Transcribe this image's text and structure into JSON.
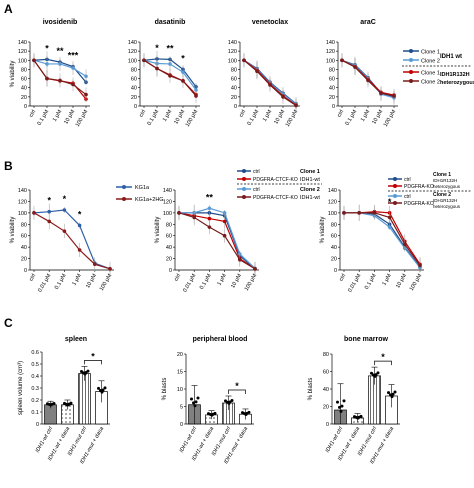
{
  "colors": {
    "clone1_wt": "#1f4e8c",
    "clone2_wt": "#5b9bd5",
    "clone1_mut": "#c00000",
    "clone2_mut": "#7b1c1c",
    "kg1a": "#2e5fa8",
    "kg1a_2hg": "#8b1a1a",
    "bar_dark": "#808080",
    "bar_light": "#ffffff"
  },
  "panels": {
    "A": "A",
    "B": "B",
    "C": "C"
  },
  "legend_A": {
    "clone1": "Clone 1",
    "clone2": "Clone 2",
    "group_wt": "IDH1 wt",
    "group_mut_line1": "IDH1R132H",
    "group_mut_line2": "heterozygous"
  },
  "legend_B": {
    "kg1a": "KG1a",
    "kg1a_2hg": "KG1a+2HG",
    "ctrl": "ctrl",
    "ko": "PDGFRA-CTCF-KO",
    "ko_short": "PDGFRA-KO",
    "clone1_title": "Clone 1",
    "clone1_sub": "IDH1-wt",
    "clone2_title": "Clone 2",
    "clone2_sub": "IDH1-wt",
    "clone1_mut_title": "Clone 1",
    "clone1_mut_sub": "IDH1R132H",
    "clone1_mut_sub2": "heterozygous",
    "clone2_mut_title": "Clone 2",
    "clone2_mut_sub": "IDH1R132H",
    "clone2_mut_sub2": "heterozygous"
  },
  "chart_data": [
    {
      "panel": "A",
      "type": "line",
      "title": "ivosidenib",
      "ylabel": "% viability",
      "categories": [
        "ctrl",
        "0.1 μM",
        "1 μM",
        "10 μM",
        "100 μM"
      ],
      "ylim": [
        0,
        140
      ],
      "yticks": [
        0,
        20,
        40,
        60,
        80,
        100,
        120,
        140
      ],
      "annotations": [
        {
          "x": 1,
          "text": "*"
        },
        {
          "x": 2,
          "text": "**"
        },
        {
          "x": 3,
          "text": "***"
        }
      ],
      "series": [
        {
          "name": "Clone 1 IDH1 wt",
          "color": "#1f4e8c",
          "values": [
            100,
            102,
            96,
            86,
            52
          ]
        },
        {
          "name": "Clone 2 IDH1 wt",
          "color": "#5b9bd5",
          "values": [
            100,
            92,
            92,
            83,
            65
          ]
        },
        {
          "name": "Clone 1 IDH1R132H",
          "color": "#c00000",
          "values": [
            100,
            60,
            55,
            50,
            15
          ]
        },
        {
          "name": "Clone 2 IDH1R132H",
          "color": "#7b1c1c",
          "values": [
            100,
            60,
            56,
            47,
            25
          ]
        }
      ]
    },
    {
      "panel": "A",
      "type": "line",
      "title": "dasatinib",
      "categories": [
        "ctrl",
        "0.1 μM",
        "1 μM",
        "10 μM",
        "100 μM"
      ],
      "ylim": [
        0,
        140
      ],
      "yticks": [
        0,
        20,
        40,
        60,
        80,
        100,
        120,
        140
      ],
      "annotations": [
        {
          "x": 1,
          "text": "*"
        },
        {
          "x": 2,
          "text": "**"
        },
        {
          "x": 3,
          "text": "*"
        }
      ],
      "series": [
        {
          "name": "Clone 1 IDH1 wt",
          "color": "#1f4e8c",
          "values": [
            100,
            103,
            102,
            80,
            42
          ]
        },
        {
          "name": "Clone 2 IDH1 wt",
          "color": "#5b9bd5",
          "values": [
            100,
            93,
            92,
            74,
            35
          ]
        },
        {
          "name": "Clone 1 IDH1R132H",
          "color": "#c00000",
          "values": [
            100,
            82,
            68,
            55,
            25
          ]
        },
        {
          "name": "Clone 2 IDH1R132H",
          "color": "#7b1c1c",
          "values": [
            100,
            82,
            66,
            55,
            22
          ]
        }
      ]
    },
    {
      "panel": "A",
      "type": "line",
      "title": "venetoclax",
      "categories": [
        "ctrl",
        "0.1 μM",
        "1 μM",
        "10 μM",
        "100 μM"
      ],
      "ylim": [
        0,
        140
      ],
      "yticks": [
        0,
        20,
        40,
        60,
        80,
        100,
        120,
        140
      ],
      "series": [
        {
          "name": "Clone 1 IDH1 wt",
          "color": "#1f4e8c",
          "values": [
            100,
            82,
            52,
            28,
            5
          ]
        },
        {
          "name": "Clone 2 IDH1 wt",
          "color": "#5b9bd5",
          "values": [
            100,
            80,
            50,
            26,
            4
          ]
        },
        {
          "name": "Clone 1 IDH1R132H",
          "color": "#c00000",
          "values": [
            100,
            78,
            48,
            22,
            2
          ]
        },
        {
          "name": "Clone 2 IDH1R132H",
          "color": "#7b1c1c",
          "values": [
            100,
            76,
            46,
            20,
            1
          ]
        }
      ]
    },
    {
      "panel": "A",
      "type": "line",
      "title": "araC",
      "categories": [
        "ctrl",
        "0.1 μM",
        "1 μM",
        "10 μM",
        "100 μM"
      ],
      "ylim": [
        0,
        140
      ],
      "yticks": [
        0,
        20,
        40,
        60,
        80,
        100,
        120,
        140
      ],
      "series": [
        {
          "name": "Clone 1 IDH1 wt",
          "color": "#1f4e8c",
          "values": [
            100,
            90,
            62,
            28,
            20
          ]
        },
        {
          "name": "Clone 2 IDH1 wt",
          "color": "#5b9bd5",
          "values": [
            100,
            88,
            60,
            26,
            18
          ]
        },
        {
          "name": "Clone 1 IDH1R132H",
          "color": "#c00000",
          "values": [
            100,
            86,
            58,
            30,
            24
          ]
        },
        {
          "name": "Clone 2 IDH1R132H",
          "color": "#7b1c1c",
          "values": [
            100,
            85,
            56,
            28,
            22
          ]
        }
      ]
    },
    {
      "panel": "B",
      "type": "line",
      "ylabel": "% viability",
      "categories": [
        "ctrl",
        "0.01 μM",
        "0.1 μM",
        "1 μM",
        "10 μM",
        "100 μM"
      ],
      "ylim": [
        0,
        140
      ],
      "yticks": [
        0,
        20,
        40,
        60,
        80,
        100,
        120,
        140
      ],
      "annotations": [
        {
          "x": 1,
          "text": "*"
        },
        {
          "x": 2,
          "text": "*"
        },
        {
          "x": 3,
          "text": "*"
        }
      ],
      "series": [
        {
          "name": "KG1a",
          "color": "#2e5fa8",
          "values": [
            100,
            102,
            105,
            78,
            12,
            2
          ]
        },
        {
          "name": "KG1a+2HG",
          "color": "#8b1a1a",
          "values": [
            100,
            85,
            68,
            35,
            10,
            2
          ]
        }
      ]
    },
    {
      "panel": "B",
      "type": "line",
      "ylabel": "% viability",
      "categories": [
        "ctrl",
        "0.01 μM",
        "0.1 μM",
        "1 μM",
        "10 μM",
        "100 μM"
      ],
      "ylim": [
        0,
        140
      ],
      "yticks": [
        0,
        20,
        40,
        60,
        80,
        100,
        120,
        140
      ],
      "annotations": [
        {
          "x": 2,
          "text": "**"
        }
      ],
      "series": [
        {
          "name": "Clone 1 ctrl",
          "color": "#1f4e8c",
          "values": [
            100,
            100,
            100,
            95,
            25,
            2
          ]
        },
        {
          "name": "Clone 1 PDGFRA-CTCF-KO",
          "color": "#c00000",
          "values": [
            100,
            95,
            90,
            85,
            20,
            2
          ]
        },
        {
          "name": "Clone 2 ctrl",
          "color": "#5b9bd5",
          "values": [
            100,
            100,
            108,
            100,
            28,
            3
          ]
        },
        {
          "name": "Clone 2 PDGFRA-CTCF-KO",
          "color": "#7b1c1c",
          "values": [
            100,
            92,
            75,
            60,
            18,
            2
          ]
        }
      ]
    },
    {
      "panel": "B",
      "type": "line",
      "ylabel": "% viability",
      "categories": [
        "ctrl",
        "0.01 μM",
        "0.1 μM",
        "1 μM",
        "10 μM",
        "100 μM"
      ],
      "ylim": [
        0,
        140
      ],
      "yticks": [
        0,
        20,
        40,
        60,
        80,
        100,
        120,
        140
      ],
      "annotations": [
        {
          "x": 3,
          "text": "*"
        }
      ],
      "series": [
        {
          "name": "Clone 1 ctrl",
          "color": "#1f4e8c",
          "values": [
            100,
            100,
            98,
            80,
            40,
            5
          ]
        },
        {
          "name": "Clone 1 PDGFRA-KO",
          "color": "#c00000",
          "values": [
            100,
            100,
            102,
            100,
            50,
            10
          ]
        },
        {
          "name": "Clone 2 ctrl",
          "color": "#5b9bd5",
          "values": [
            100,
            100,
            95,
            75,
            38,
            4
          ]
        },
        {
          "name": "Clone 2 PDGFRA-KO",
          "color": "#7b1c1c",
          "values": [
            100,
            100,
            100,
            92,
            45,
            8
          ]
        }
      ]
    },
    {
      "panel": "C",
      "type": "bar",
      "title": "spleen",
      "ylabel": "spleen volume (cm³)",
      "categories": [
        "IDH1-wt ctrl",
        "IDH1-wt + dasa",
        "IDH1-mut ctrl",
        "IDH1-mut + dasa"
      ],
      "values": [
        0.16,
        0.16,
        0.42,
        0.27
      ],
      "errors": [
        0.03,
        0.04,
        0.06,
        0.09
      ],
      "fill": [
        "#808080",
        "dots",
        "lines",
        "#ffffff"
      ],
      "ylim": [
        0,
        0.6
      ],
      "yticks": [
        0,
        0.1,
        0.2,
        0.3,
        0.4,
        0.5,
        0.6
      ],
      "annotations": [
        {
          "between": [
            2,
            3
          ],
          "text": "*"
        }
      ]
    },
    {
      "panel": "C",
      "type": "bar",
      "title": "peripheral blood",
      "ylabel": "% blasts",
      "categories": [
        "IDH1-wt ctrl",
        "IDH1-wt + dasa",
        "IDH1-mut ctrl",
        "IDH1-mut + dasa"
      ],
      "values": [
        5.5,
        2.6,
        6.0,
        2.8
      ],
      "errors": [
        5.5,
        1.2,
        2.0,
        1.5
      ],
      "fill": [
        "#808080",
        "dots",
        "lines",
        "#ffffff"
      ],
      "ylim": [
        0,
        20
      ],
      "yticks": [
        0,
        5,
        10,
        15,
        20
      ],
      "annotations": [
        {
          "between": [
            2,
            3
          ],
          "text": "*"
        }
      ]
    },
    {
      "panel": "C",
      "type": "bar",
      "title": "bone marrow",
      "ylabel": "% blasts",
      "categories": [
        "IDH1-wt ctrl",
        "IDH1-wt + dasa",
        "IDH1-mut ctrl",
        "IDH1-mut + dasa"
      ],
      "values": [
        16,
        7,
        55,
        32
      ],
      "errors": [
        30,
        5,
        10,
        13
      ],
      "fill": [
        "#808080",
        "dots",
        "lines",
        "#ffffff"
      ],
      "ylim": [
        0,
        80
      ],
      "yticks": [
        0,
        20,
        40,
        60,
        80
      ],
      "annotations": [
        {
          "between": [
            2,
            3
          ],
          "text": "*"
        }
      ]
    }
  ]
}
